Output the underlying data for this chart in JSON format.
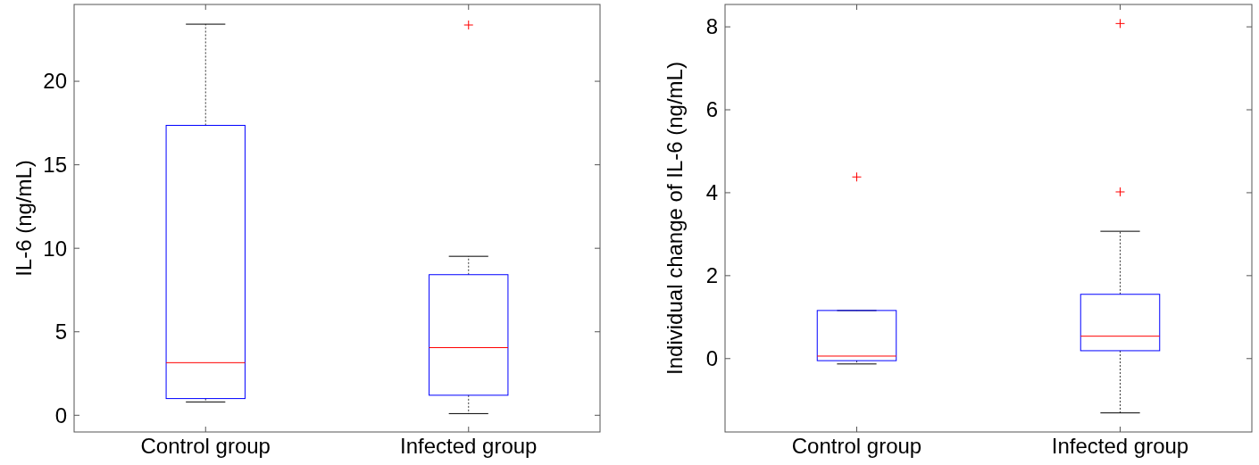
{
  "chart_data": [
    {
      "type": "box",
      "ylabel": "IL-6 (ng/mL)",
      "categories": [
        "Control group",
        "Infected group"
      ],
      "ylim": [
        -1,
        24.6
      ],
      "yticks": [
        0,
        5,
        10,
        15,
        20
      ],
      "grid": false,
      "marker": "cross",
      "boxes": [
        {
          "low": 0.8,
          "q1": 1.0,
          "median": 3.15,
          "q3": 17.36,
          "high": 23.42
        },
        {
          "low": 0.1,
          "q1": 1.2,
          "median": 4.05,
          "q3": 8.42,
          "high": 9.52,
          "outliers": [
            23.37
          ]
        }
      ]
    },
    {
      "type": "box",
      "ylabel": "Individual change of IL-6 (ng/mL)",
      "categories": [
        "Control group",
        "Infected group"
      ],
      "ylim": [
        -1.77,
        8.54
      ],
      "yticks": [
        0,
        2,
        4,
        6,
        8
      ],
      "grid": false,
      "marker": "cross",
      "boxes": [
        {
          "low": -0.13,
          "q1": -0.05,
          "median": 0.06,
          "q3": 1.16,
          "high": 1.16,
          "outliers": [
            4.38
          ]
        },
        {
          "low": -1.31,
          "q1": 0.19,
          "median": 0.54,
          "q3": 1.55,
          "high": 3.07,
          "outliers": [
            8.08,
            4.02
          ]
        }
      ]
    }
  ]
}
